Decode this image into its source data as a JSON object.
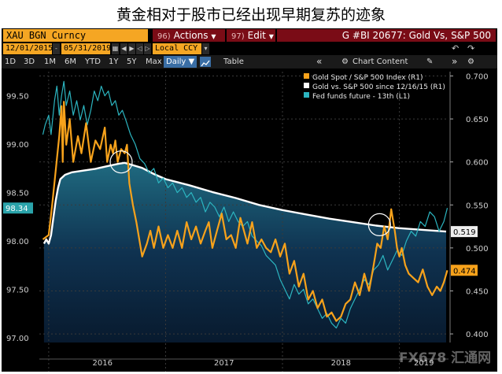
{
  "headline": "黄金相对于股市已经出现早期复苏的迹象",
  "toolbar": {
    "ticker": "XAU BGN Curncy",
    "actions_num": "96)",
    "actions_label": "Actions",
    "actions_arrow": "▼",
    "edit_num": "97)",
    "edit_label": "Edit",
    "edit_arrow": "▼",
    "title_text": "G #BI 20677: Gold Vs, S&P 500"
  },
  "dates": {
    "start": "12/01/2015",
    "end": "05/31/2019",
    "currency": "Local CCY"
  },
  "periods": [
    "1D",
    "3D",
    "1M",
    "6M",
    "YTD",
    "1Y",
    "5Y",
    "Max"
  ],
  "frequency": "Daily ▼",
  "table_label": "Table",
  "chart_content_label": "Chart Content",
  "icons": {
    "collapse": "«",
    "gear": "⚙",
    "undo": "↶",
    "redo": "↷",
    "pin": "✎",
    "expand": "»"
  },
  "watermark": "FX678 汇通网",
  "colors": {
    "gold_spot": "#f7a21b",
    "gold_vs_spx": "#ffffff",
    "fed_funds": "#2cb5c0",
    "left_highlight": "#2aa3aa",
    "right_label_bg": "#eeeeee",
    "gold_label_bg": "#f7a21b"
  },
  "chart_data": {
    "type": "line",
    "legend": [
      "Gold Spot / S&P 500 Index (R1)",
      "Gold vs. S&P 500 since 12/16/15 (R1)",
      "Fed funds future - 13th (L1)"
    ],
    "left_axis": {
      "ticks": [
        "99.50",
        "99.00",
        "98.50",
        "98.00",
        "97.50",
        "97.00"
      ],
      "range": [
        96.95,
        99.75
      ],
      "current_label": "98.34"
    },
    "right_axis": {
      "ticks": [
        "0.700",
        "0.650",
        "0.600",
        "0.550",
        "0.500",
        "0.450",
        "0.400"
      ],
      "range": [
        0.39,
        0.705
      ]
    },
    "x_axis": {
      "labels": [
        "2016",
        "2017",
        "2018",
        "2019"
      ],
      "range": [
        2015.92,
        2019.42
      ]
    },
    "right_labels": {
      "gold_vs_spx": "0.519",
      "gold_spot": "0.474"
    },
    "series": [
      {
        "name": "Gold Spot / S&P 500 Index (R1)",
        "axis": "right",
        "x": [
          2015.95,
          2016.0,
          2016.03,
          2016.06,
          2016.09,
          2016.11,
          2016.12,
          2016.13,
          2016.15,
          2016.18,
          2016.21,
          2016.25,
          2016.28,
          2016.32,
          2016.36,
          2016.4,
          2016.44,
          2016.48,
          2016.5,
          2016.53,
          2016.55,
          2016.57,
          2016.59,
          2016.62,
          2016.65,
          2016.67,
          2016.69,
          2016.72,
          2016.75,
          2016.8,
          2016.84,
          2016.87,
          2016.9,
          2016.94,
          2016.98,
          2017.02,
          2017.06,
          2017.1,
          2017.14,
          2017.18,
          2017.22,
          2017.26,
          2017.3,
          2017.34,
          2017.37,
          2017.4,
          2017.44,
          2017.48,
          2017.52,
          2017.56,
          2017.6,
          2017.64,
          2017.67,
          2017.7,
          2017.74,
          2017.78,
          2017.82,
          2017.86,
          2017.9,
          2017.94,
          2017.98,
          2018.02,
          2018.06,
          2018.1,
          2018.14,
          2018.18,
          2018.22,
          2018.26,
          2018.3,
          2018.34,
          2018.38,
          2018.42,
          2018.46,
          2018.5,
          2018.54,
          2018.58,
          2018.62,
          2018.66,
          2018.7,
          2018.74,
          2018.78,
          2018.81,
          2018.84,
          2018.87,
          2018.9,
          2018.93,
          2018.96,
          2018.98,
          2019.0,
          2019.02,
          2019.05,
          2019.08,
          2019.12,
          2019.16,
          2019.2,
          2019.24,
          2019.28,
          2019.32,
          2019.35,
          2019.38,
          2019.41
        ],
        "values": [
          0.51,
          0.515,
          0.55,
          0.59,
          0.63,
          0.665,
          0.6,
          0.67,
          0.62,
          0.65,
          0.6,
          0.63,
          0.61,
          0.645,
          0.6,
          0.625,
          0.615,
          0.64,
          0.6,
          0.62,
          0.61,
          0.625,
          0.6,
          0.615,
          0.61,
          0.62,
          0.575,
          0.55,
          0.53,
          0.49,
          0.505,
          0.52,
          0.5,
          0.525,
          0.5,
          0.515,
          0.5,
          0.52,
          0.5,
          0.53,
          0.51,
          0.525,
          0.505,
          0.52,
          0.53,
          0.5,
          0.52,
          0.54,
          0.51,
          0.515,
          0.5,
          0.535,
          0.52,
          0.505,
          0.53,
          0.5,
          0.51,
          0.5,
          0.495,
          0.51,
          0.49,
          0.505,
          0.47,
          0.485,
          0.455,
          0.47,
          0.44,
          0.45,
          0.43,
          0.44,
          0.42,
          0.425,
          0.415,
          0.42,
          0.435,
          0.44,
          0.46,
          0.445,
          0.47,
          0.45,
          0.48,
          0.505,
          0.5,
          0.525,
          0.51,
          0.545,
          0.52,
          0.5,
          0.49,
          0.5,
          0.48,
          0.47,
          0.465,
          0.46,
          0.475,
          0.455,
          0.445,
          0.455,
          0.45,
          0.46,
          0.474
        ]
      },
      {
        "name": "Gold vs. S&P 500 since 12/16/15 (R1)",
        "axis": "right",
        "x": [
          2015.96,
          2015.98,
          2016.0,
          2016.02,
          2016.04,
          2016.06,
          2016.08,
          2016.1,
          2016.14,
          2016.2,
          2016.3,
          2016.4,
          2016.5,
          2016.6,
          2016.65,
          2016.7,
          2016.8,
          2016.9,
          2017.0,
          2017.2,
          2017.4,
          2017.6,
          2017.8,
          2018.0,
          2018.2,
          2018.4,
          2018.6,
          2018.8,
          2019.0,
          2019.2,
          2019.4
        ],
        "values": [
          0.505,
          0.51,
          0.505,
          0.515,
          0.535,
          0.555,
          0.57,
          0.58,
          0.585,
          0.588,
          0.59,
          0.592,
          0.595,
          0.598,
          0.599,
          0.597,
          0.593,
          0.586,
          0.58,
          0.573,
          0.565,
          0.558,
          0.55,
          0.544,
          0.539,
          0.534,
          0.53,
          0.526,
          0.523,
          0.521,
          0.519
        ]
      },
      {
        "name": "Fed funds future - 13th (L1)",
        "axis": "left",
        "x": [
          2015.95,
          2015.97,
          2016.0,
          2016.02,
          2016.05,
          2016.07,
          2016.09,
          2016.11,
          2016.13,
          2016.15,
          2016.18,
          2016.21,
          2016.24,
          2016.27,
          2016.3,
          2016.33,
          2016.36,
          2016.39,
          2016.42,
          2016.45,
          2016.48,
          2016.51,
          2016.54,
          2016.57,
          2016.6,
          2016.63,
          2016.66,
          2016.7,
          2016.74,
          2016.78,
          2016.82,
          2016.86,
          2016.9,
          2016.94,
          2016.98,
          2017.02,
          2017.06,
          2017.1,
          2017.14,
          2017.18,
          2017.22,
          2017.26,
          2017.3,
          2017.34,
          2017.38,
          2017.42,
          2017.46,
          2017.5,
          2017.54,
          2017.58,
          2017.62,
          2017.66,
          2017.7,
          2017.74,
          2017.78,
          2017.82,
          2017.86,
          2017.9,
          2017.94,
          2017.98,
          2018.02,
          2018.06,
          2018.1,
          2018.14,
          2018.18,
          2018.22,
          2018.26,
          2018.3,
          2018.34,
          2018.38,
          2018.42,
          2018.46,
          2018.5,
          2018.54,
          2018.58,
          2018.62,
          2018.66,
          2018.7,
          2018.74,
          2018.78,
          2018.82,
          2018.86,
          2018.9,
          2018.94,
          2018.98,
          2019.02,
          2019.06,
          2019.1,
          2019.14,
          2019.18,
          2019.22,
          2019.26,
          2019.3,
          2019.34,
          2019.38,
          2019.41
        ],
        "values": [
          99.1,
          99.2,
          99.3,
          99.1,
          99.45,
          99.6,
          99.3,
          99.5,
          99.65,
          99.4,
          99.55,
          99.3,
          99.45,
          99.25,
          99.4,
          99.2,
          99.35,
          99.55,
          99.45,
          99.6,
          99.5,
          99.55,
          99.4,
          99.45,
          99.3,
          99.35,
          99.25,
          99.1,
          99.0,
          98.85,
          98.8,
          98.7,
          98.75,
          98.6,
          98.65,
          98.55,
          98.6,
          98.5,
          98.55,
          98.45,
          98.5,
          98.4,
          98.45,
          98.3,
          98.4,
          98.35,
          98.25,
          98.35,
          98.2,
          98.3,
          98.2,
          98.15,
          98.2,
          98.05,
          98.0,
          97.95,
          97.85,
          97.8,
          97.75,
          97.6,
          97.5,
          97.4,
          97.55,
          97.45,
          97.5,
          97.35,
          97.4,
          97.3,
          97.2,
          97.25,
          97.15,
          97.1,
          97.2,
          97.15,
          97.3,
          97.4,
          97.5,
          97.6,
          97.55,
          97.7,
          97.75,
          97.85,
          97.7,
          97.8,
          97.9,
          97.85,
          98.0,
          98.1,
          98.05,
          98.2,
          98.15,
          98.3,
          98.25,
          98.1,
          98.2,
          98.34
        ]
      }
    ],
    "highlights": [
      {
        "x": 2016.62,
        "y": 0.6
      },
      {
        "x": 2018.83,
        "y": 0.527
      }
    ]
  }
}
